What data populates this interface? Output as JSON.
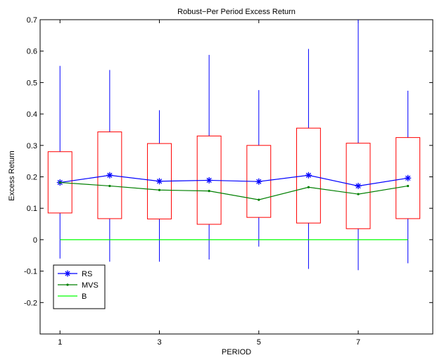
{
  "chart_data": {
    "type": "box-line",
    "title": "Robust−Per Period Excess Return",
    "xlabel": "PERIOD",
    "ylabel": "Excess Return",
    "xlim": [
      0.6,
      8.5
    ],
    "ylim": [
      -0.3,
      0.7
    ],
    "x_ticks": [
      1,
      3,
      5,
      7
    ],
    "x_tick_labels": [
      "1",
      "3",
      "5",
      "7"
    ],
    "y_ticks": [
      -0.2,
      -0.1,
      0,
      0.1,
      0.2,
      0.3,
      0.4,
      0.5,
      0.6,
      0.7
    ],
    "y_tick_labels": [
      "-0.2",
      "-0.1",
      "0",
      "0.1",
      "0.2",
      "0.3",
      "0.4",
      "0.5",
      "0.6",
      "0.7"
    ],
    "grid": false,
    "legend_position": "bottom-left",
    "box_color": "#ff0000",
    "whisker_color": "#0000ff",
    "periods": [
      1,
      2,
      3,
      4,
      5,
      6,
      7,
      8
    ],
    "boxes": [
      {
        "period": 1,
        "whisker_low": -0.06,
        "q1": 0.085,
        "q3": 0.28,
        "whisker_high": 0.553
      },
      {
        "period": 2,
        "whisker_low": -0.07,
        "q1": 0.067,
        "q3": 0.343,
        "whisker_high": 0.54
      },
      {
        "period": 3,
        "whisker_low": -0.07,
        "q1": 0.066,
        "q3": 0.306,
        "whisker_high": 0.412
      },
      {
        "period": 4,
        "whisker_low": -0.063,
        "q1": 0.049,
        "q3": 0.33,
        "whisker_high": 0.588
      },
      {
        "period": 5,
        "whisker_low": -0.022,
        "q1": 0.071,
        "q3": 0.3,
        "whisker_high": 0.476
      },
      {
        "period": 6,
        "whisker_low": -0.093,
        "q1": 0.053,
        "q3": 0.355,
        "whisker_high": 0.607
      },
      {
        "period": 7,
        "whisker_low": -0.097,
        "q1": 0.035,
        "q3": 0.307,
        "whisker_high": 0.7
      },
      {
        "period": 8,
        "whisker_low": -0.075,
        "q1": 0.067,
        "q3": 0.325,
        "whisker_high": 0.474
      }
    ],
    "series": [
      {
        "name": "RS",
        "color": "#0000ff",
        "marker": "asterisk",
        "values": [
          0.182,
          0.205,
          0.186,
          0.189,
          0.185,
          0.205,
          0.171,
          0.196
        ]
      },
      {
        "name": "MVS",
        "color": "#007f00",
        "marker": "dot",
        "values": [
          0.182,
          0.171,
          0.158,
          0.155,
          0.127,
          0.167,
          0.145,
          0.171
        ]
      },
      {
        "name": "B",
        "color": "#00ff00",
        "marker": "none",
        "values": [
          0,
          0,
          0,
          0,
          0,
          0,
          0,
          0
        ]
      }
    ]
  }
}
